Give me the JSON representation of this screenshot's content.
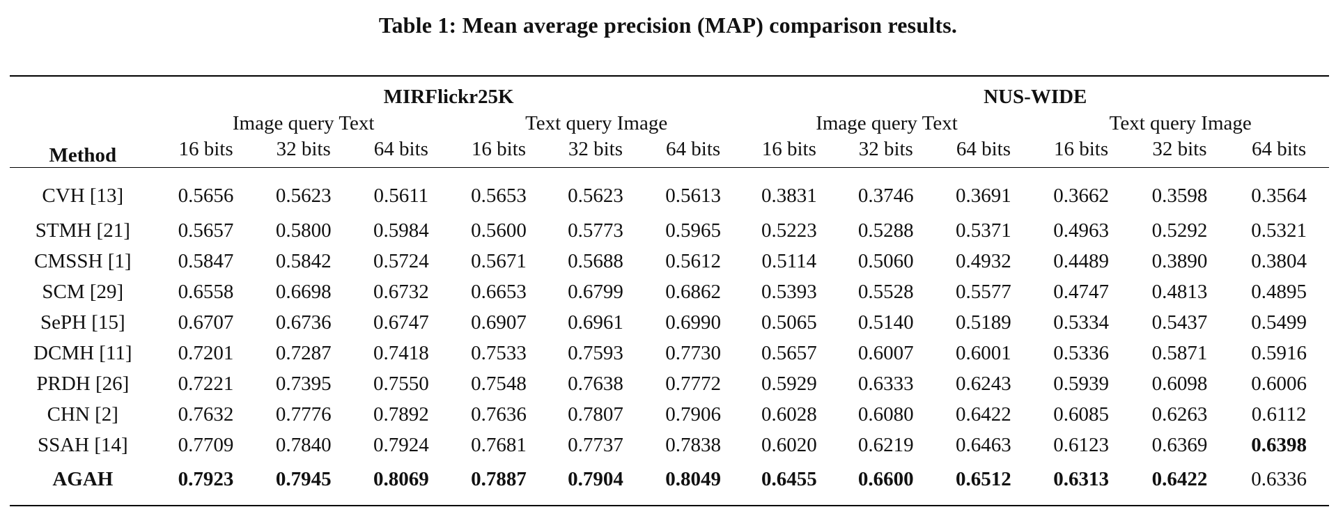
{
  "caption": "Table 1: Mean average precision (MAP) comparison results.",
  "header": {
    "method": "Method",
    "datasets": [
      "MIRFlickr25K",
      "NUS-WIDE"
    ],
    "directions": [
      "Image query Text",
      "Text query Image",
      "Image query Text",
      "Text query Image"
    ],
    "bits": [
      "16 bits",
      "32 bits",
      "64 bits",
      "16 bits",
      "32 bits",
      "64 bits",
      "16 bits",
      "32 bits",
      "64 bits",
      "16 bits",
      "32 bits",
      "64 bits"
    ]
  },
  "rows": [
    {
      "method": "CVH [13]",
      "values": [
        "0.5656",
        "0.5623",
        "0.5611",
        "0.5653",
        "0.5623",
        "0.5613",
        "0.3831",
        "0.3746",
        "0.3691",
        "0.3662",
        "0.3598",
        "0.3564"
      ]
    },
    {
      "method": "STMH [21]",
      "values": [
        "0.5657",
        "0.5800",
        "0.5984",
        "0.5600",
        "0.5773",
        "0.5965",
        "0.5223",
        "0.5288",
        "0.5371",
        "0.4963",
        "0.5292",
        "0.5321"
      ]
    },
    {
      "method": "CMSSH [1]",
      "values": [
        "0.5847",
        "0.5842",
        "0.5724",
        "0.5671",
        "0.5688",
        "0.5612",
        "0.5114",
        "0.5060",
        "0.4932",
        "0.4489",
        "0.3890",
        "0.3804"
      ]
    },
    {
      "method": "SCM [29]",
      "values": [
        "0.6558",
        "0.6698",
        "0.6732",
        "0.6653",
        "0.6799",
        "0.6862",
        "0.5393",
        "0.5528",
        "0.5577",
        "0.4747",
        "0.4813",
        "0.4895"
      ]
    },
    {
      "method": "SePH [15]",
      "values": [
        "0.6707",
        "0.6736",
        "0.6747",
        "0.6907",
        "0.6961",
        "0.6990",
        "0.5065",
        "0.5140",
        "0.5189",
        "0.5334",
        "0.5437",
        "0.5499"
      ]
    },
    {
      "method": "DCMH [11]",
      "values": [
        "0.7201",
        "0.7287",
        "0.7418",
        "0.7533",
        "0.7593",
        "0.7730",
        "0.5657",
        "0.6007",
        "0.6001",
        "0.5336",
        "0.5871",
        "0.5916"
      ]
    },
    {
      "method": "PRDH [26]",
      "values": [
        "0.7221",
        "0.7395",
        "0.7550",
        "0.7548",
        "0.7638",
        "0.7772",
        "0.5929",
        "0.6333",
        "0.6243",
        "0.5939",
        "0.6098",
        "0.6006"
      ]
    },
    {
      "method": "CHN [2]",
      "values": [
        "0.7632",
        "0.7776",
        "0.7892",
        "0.7636",
        "0.7807",
        "0.7906",
        "0.6028",
        "0.6080",
        "0.6422",
        "0.6085",
        "0.6263",
        "0.6112"
      ]
    },
    {
      "method": "SSAH [14]",
      "values": [
        "0.7709",
        "0.7840",
        "0.7924",
        "0.7681",
        "0.7737",
        "0.7838",
        "0.6020",
        "0.6219",
        "0.6463",
        "0.6123",
        "0.6369",
        "0.6398"
      ]
    },
    {
      "method": "AGAH",
      "values": [
        "0.7923",
        "0.7945",
        "0.8069",
        "0.7887",
        "0.7904",
        "0.8049",
        "0.6455",
        "0.6600",
        "0.6512",
        "0.6313",
        "0.6422",
        "0.6336"
      ]
    }
  ]
}
